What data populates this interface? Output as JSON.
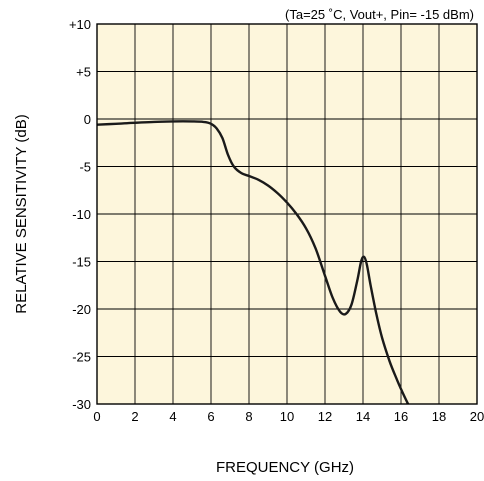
{
  "chart_data": {
    "type": "line",
    "title": "",
    "annotation": "(Ta=25 ˚C, Vout+, Pin= -15 dBm)",
    "xlabel": "FREQUENCY (GHz)",
    "ylabel": "RELATIVE SENSITIVITY (dB)",
    "xlim": [
      0,
      20
    ],
    "ylim": [
      -30,
      10
    ],
    "x_ticks": [
      0,
      2,
      4,
      6,
      8,
      10,
      12,
      14,
      16,
      18,
      20
    ],
    "x_tick_labels": [
      "0",
      "2",
      "4",
      "6",
      "8",
      "10",
      "12",
      "14",
      "16",
      "18",
      "20"
    ],
    "y_ticks": [
      10,
      5,
      0,
      -5,
      -10,
      -15,
      -20,
      -25,
      -30
    ],
    "y_tick_labels": [
      "+10",
      "+5",
      "0",
      "-5",
      "-10",
      "-15",
      "-20",
      "-25",
      "-30"
    ],
    "grid": true,
    "plot_background": "#fdf6dc",
    "line_color": "#1a1a1a",
    "series": [
      {
        "x": [
          0,
          1,
          2,
          3,
          4,
          5,
          5.6,
          6,
          6.3,
          6.6,
          6.9,
          7.2,
          7.6,
          8,
          8.5,
          9,
          9.5,
          10,
          10.5,
          11,
          11.5,
          12,
          12.4,
          12.8,
          13.1,
          13.4,
          13.7,
          13.9,
          14.05,
          14.2,
          14.4,
          14.7,
          15,
          15.4,
          15.8,
          16.2,
          16.5
        ],
        "y": [
          -0.6,
          -0.5,
          -0.4,
          -0.3,
          -0.25,
          -0.25,
          -0.3,
          -0.5,
          -1.0,
          -2.0,
          -3.8,
          -5.0,
          -5.7,
          -6.0,
          -6.4,
          -7.0,
          -7.8,
          -8.8,
          -10.0,
          -11.5,
          -13.6,
          -16.5,
          -18.8,
          -20.3,
          -20.5,
          -19.5,
          -17.0,
          -15.0,
          -14.5,
          -15.3,
          -17.5,
          -20.5,
          -23.0,
          -25.5,
          -27.5,
          -29.3,
          -30.5
        ]
      }
    ]
  }
}
